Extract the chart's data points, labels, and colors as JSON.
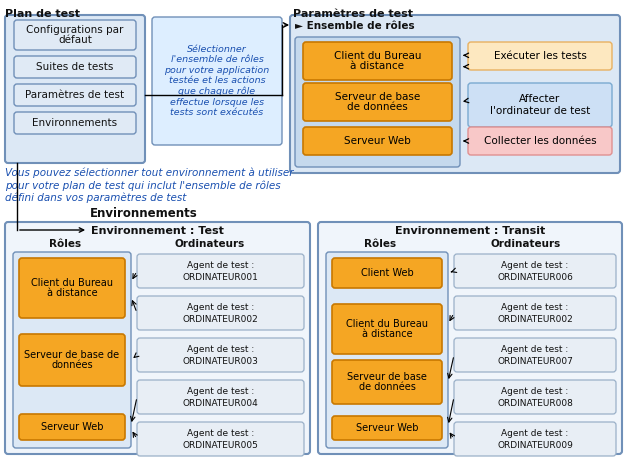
{
  "title_plan": "Plan de test",
  "title_params": "Paramètres de test",
  "title_envs": "Environnements",
  "env_test_title": "Environnement : Test",
  "env_transit_title": "Environnement : Transit",
  "plan_items": [
    "Configurations par\ndéfaut",
    "Suites de tests",
    "Paramètres de test",
    "Environnements"
  ],
  "callout_text": "Sélectionner\nl'ensemble de rôles\npour votre application\ntestée et les actions\nque chaque rôle\neffectue lorsque les\ntests sont exécutés",
  "roles_label": "Rôles",
  "ordinateurs_label": "Ordinateurs",
  "ensemble_label": "► Ensemble de rôles",
  "roles_top": [
    "Client du Bureau\nà distance",
    "Serveur de base\nde données",
    "Serveur Web"
  ],
  "actions_top": [
    "Exécuter les tests",
    "Affecter\nl'ordinateur de test",
    "Collecter les données"
  ],
  "action_colors": [
    "#fde8c0",
    "#cde0f5",
    "#f8c8c8"
  ],
  "action_border_colors": [
    "#e8b060",
    "#7aaad0",
    "#e09090"
  ],
  "roles_test": [
    "Client du Bureau\nà distance",
    "Serveur de base de\ndonnées",
    "Serveur Web"
  ],
  "agents_test": [
    "Agent de test :\nORDINATEUR001",
    "Agent de test :\nORDINATEUR002",
    "Agent de test :\nORDINATEUR003",
    "Agent de test :\nORDINATEUR004",
    "Agent de test :\nORDINATEUR005"
  ],
  "roles_transit": [
    "Client Web",
    "Client du Bureau\nà distance",
    "Serveur de base\nde données",
    "Serveur Web"
  ],
  "agents_transit": [
    "Agent de test :\nORDINATEUR006",
    "Agent de test :\nORDINATEUR002",
    "Agent de test :\nORDINATEUR007",
    "Agent de test :\nORDINATEUR008",
    "Agent de test :\nORDINATEUR009"
  ],
  "blue_light": "#dce8f5",
  "blue_roles": "#c5d9ed",
  "orange_fill": "#f5a623",
  "orange_border": "#c87800",
  "agent_fill": "#e8eef5",
  "agent_border": "#9ab0c8",
  "text_blue": "#1a50b0",
  "text_dark": "#111111",
  "box_border": "#7090b8",
  "plan_item_fill": "#e0eaf5",
  "bottom_note": "Vous pouvez sélectionner tout environnement à utiliser\npour votre plan de test qui inclut l'ensemble de rôles\ndéfini dans vos paramètres de test"
}
